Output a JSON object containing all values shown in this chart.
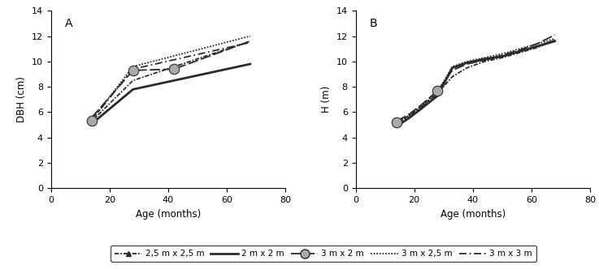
{
  "A": {
    "title": "A",
    "ylabel": "DBH (cm)",
    "xlabel": "Age (months)",
    "xlim": [
      0,
      80
    ],
    "ylim": [
      0,
      14
    ],
    "yticks": [
      0,
      2,
      4,
      6,
      8,
      10,
      12,
      14
    ],
    "xticks": [
      0,
      20,
      40,
      60,
      80
    ],
    "series": {
      "2.5x2.5": {
        "x": [
          14,
          28,
          68
        ],
        "y": [
          5.3,
          8.5,
          11.6
        ]
      },
      "2x2": {
        "x": [
          14,
          28,
          42,
          68
        ],
        "y": [
          5.1,
          7.8,
          8.5,
          9.8
        ]
      },
      "3x2": {
        "x": [
          14,
          28,
          42,
          68
        ],
        "y": [
          5.6,
          9.3,
          9.4,
          11.6
        ]
      },
      "3x2.5": {
        "x": [
          14,
          28,
          68
        ],
        "y": [
          5.4,
          9.6,
          12.0
        ]
      },
      "3x3": {
        "x": [
          14,
          28,
          68
        ],
        "y": [
          5.4,
          9.4,
          11.5
        ]
      }
    }
  },
  "B": {
    "title": "B",
    "ylabel": "H (m)",
    "xlabel": "Age (months)",
    "xlim": [
      0,
      80
    ],
    "ylim": [
      0,
      14
    ],
    "yticks": [
      0,
      2,
      4,
      6,
      8,
      10,
      12,
      14
    ],
    "xticks": [
      0,
      20,
      40,
      60,
      80
    ],
    "series": {
      "2.5x2.5": {
        "x": [
          14,
          18,
          22,
          28,
          33,
          38,
          44,
          50,
          56,
          62,
          68
        ],
        "y": [
          5.2,
          5.7,
          6.4,
          7.5,
          8.8,
          9.5,
          10.0,
          10.3,
          10.7,
          11.1,
          11.7
        ]
      },
      "2x2": {
        "x": [
          14,
          18,
          22,
          28,
          33,
          38,
          44,
          50,
          56,
          62,
          68
        ],
        "y": [
          4.9,
          5.5,
          6.2,
          7.3,
          9.5,
          9.9,
          10.2,
          10.4,
          10.8,
          11.2,
          11.6
        ]
      },
      "3x2": {
        "x": [
          14,
          18,
          22,
          28,
          33,
          38,
          44,
          50,
          56,
          62,
          68
        ],
        "y": [
          5.3,
          5.8,
          6.5,
          7.7,
          9.3,
          9.8,
          10.1,
          10.5,
          10.9,
          11.4,
          12.1
        ]
      },
      "3x2.5": {
        "x": [
          14,
          18,
          22,
          28,
          33,
          38,
          44,
          50,
          56,
          62,
          68
        ],
        "y": [
          5.1,
          5.7,
          6.4,
          7.6,
          9.6,
          10.0,
          10.3,
          10.6,
          11.0,
          11.4,
          11.8
        ]
      },
      "3x3": {
        "x": [
          14,
          18,
          22,
          28,
          33,
          38,
          44,
          50,
          56,
          62,
          68
        ],
        "y": [
          5.0,
          5.6,
          6.3,
          7.5,
          9.5,
          9.9,
          10.1,
          10.4,
          10.8,
          11.2,
          11.7
        ]
      }
    }
  },
  "legend_labels": [
    "2,5 m x 2,5 m",
    "2 m x 2 m",
    "3 m x 2 m",
    "3 m x 2,5 m",
    "3 m x 3 m"
  ],
  "line_color": "#2b2b2b",
  "marker_color_gray": "#aaaaaa"
}
